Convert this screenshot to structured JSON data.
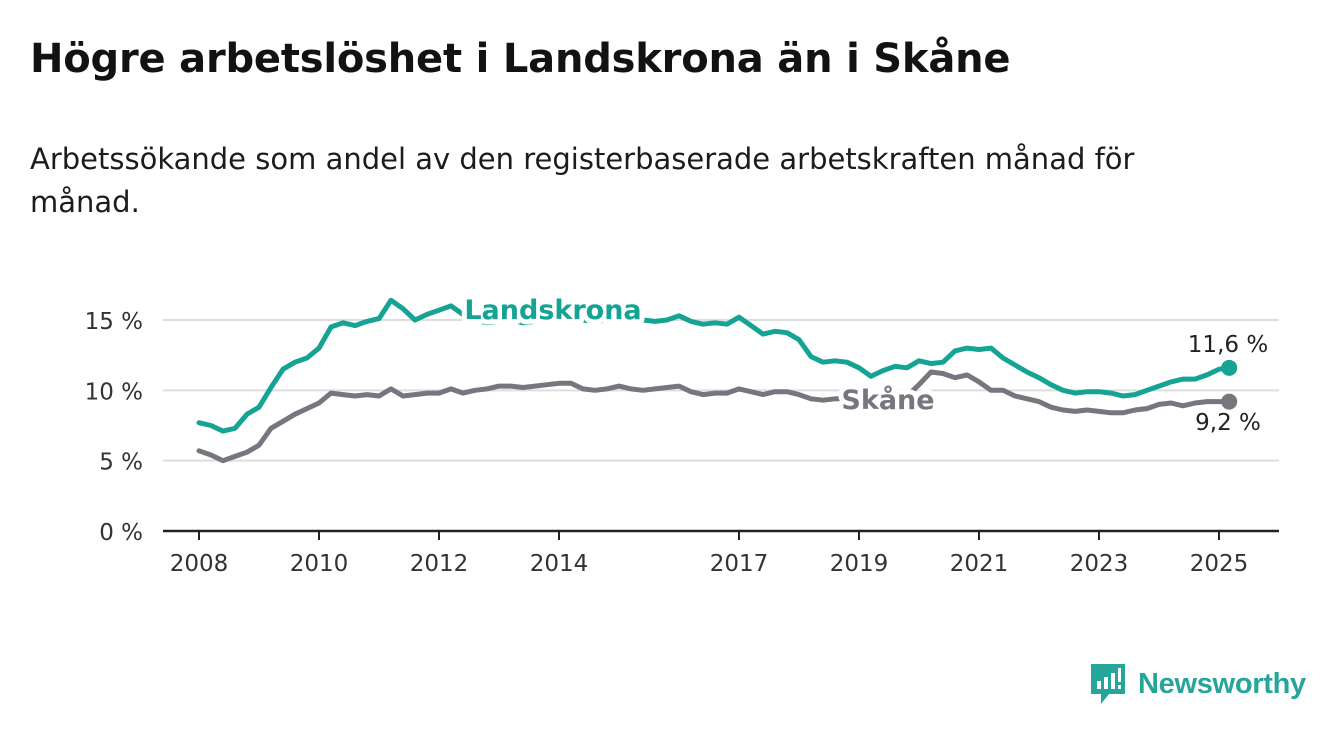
{
  "title": "Högre arbetslöshet i Landskrona än i Skåne",
  "subtitle": "Arbetssökande som andel av den registerbaserade arbetskraften månad för månad.",
  "brand": {
    "name": "Newsworthy",
    "color": "#26a69a"
  },
  "chart_data": {
    "type": "line",
    "ylim": [
      0,
      17
    ],
    "xlim": [
      2007.4,
      2026.0
    ],
    "y_ticks": [
      {
        "value": 0,
        "label": "0 %"
      },
      {
        "value": 5,
        "label": "5 %"
      },
      {
        "value": 10,
        "label": "10 %"
      },
      {
        "value": 15,
        "label": "15 %"
      }
    ],
    "x_ticks": [
      {
        "value": 2008,
        "label": "2008"
      },
      {
        "value": 2010,
        "label": "2010"
      },
      {
        "value": 2012,
        "label": "2012"
      },
      {
        "value": 2014,
        "label": "2014"
      },
      {
        "value": 2017,
        "label": "2017"
      },
      {
        "value": 2019,
        "label": "2019"
      },
      {
        "value": 2021,
        "label": "2021"
      },
      {
        "value": 2023,
        "label": "2023"
      },
      {
        "value": 2025,
        "label": "2025"
      }
    ],
    "grid": true,
    "series": [
      {
        "name": "Landskrona",
        "color": "#14a394",
        "end_label": "11,6 %",
        "x": [
          2008.0,
          2008.2,
          2008.4,
          2008.6,
          2008.8,
          2009.0,
          2009.2,
          2009.4,
          2009.6,
          2009.8,
          2010.0,
          2010.2,
          2010.4,
          2010.6,
          2010.8,
          2011.0,
          2011.2,
          2011.4,
          2011.6,
          2011.8,
          2012.0,
          2012.2,
          2012.4,
          2012.6,
          2012.8,
          2013.0,
          2013.2,
          2013.4,
          2013.6,
          2013.8,
          2014.0,
          2014.2,
          2014.4,
          2014.6,
          2014.8,
          2015.0,
          2015.2,
          2015.4,
          2015.6,
          2015.8,
          2016.0,
          2016.2,
          2016.4,
          2016.6,
          2016.8,
          2017.0,
          2017.2,
          2017.4,
          2017.6,
          2017.8,
          2018.0,
          2018.2,
          2018.4,
          2018.6,
          2018.8,
          2019.0,
          2019.2,
          2019.4,
          2019.6,
          2019.8,
          2020.0,
          2020.2,
          2020.4,
          2020.6,
          2020.8,
          2021.0,
          2021.2,
          2021.4,
          2021.6,
          2021.8,
          2022.0,
          2022.2,
          2022.4,
          2022.6,
          2022.8,
          2023.0,
          2023.2,
          2023.4,
          2023.6,
          2023.8,
          2024.0,
          2024.2,
          2024.4,
          2024.6,
          2024.8,
          2025.0,
          2025.17
        ],
        "values": [
          7.7,
          7.5,
          7.1,
          7.3,
          8.3,
          8.8,
          10.2,
          11.5,
          12.0,
          12.3,
          13.0,
          14.5,
          14.8,
          14.6,
          14.9,
          15.1,
          16.4,
          15.8,
          15.0,
          15.4,
          15.7,
          16.0,
          15.4,
          15.0,
          14.8,
          14.9,
          15.0,
          14.8,
          14.9,
          15.1,
          15.0,
          14.9,
          15.0,
          14.9,
          15.0,
          15.0,
          15.1,
          15.0,
          14.9,
          15.0,
          15.3,
          14.9,
          14.7,
          14.8,
          14.7,
          15.2,
          14.6,
          14.0,
          14.2,
          14.1,
          13.6,
          12.4,
          12.0,
          12.1,
          12.0,
          11.6,
          11.0,
          11.4,
          11.7,
          11.6,
          12.1,
          11.9,
          12.0,
          12.8,
          13.0,
          12.9,
          13.0,
          12.3,
          11.8,
          11.3,
          10.9,
          10.4,
          10.0,
          9.8,
          9.9,
          9.9,
          9.8,
          9.6,
          9.7,
          10.0,
          10.3,
          10.6,
          10.8,
          10.8,
          11.1,
          11.5,
          11.6
        ]
      },
      {
        "name": "Skåne",
        "color": "#76767e",
        "end_label": "9,2 %",
        "x": [
          2008.0,
          2008.2,
          2008.4,
          2008.6,
          2008.8,
          2009.0,
          2009.2,
          2009.4,
          2009.6,
          2009.8,
          2010.0,
          2010.2,
          2010.4,
          2010.6,
          2010.8,
          2011.0,
          2011.2,
          2011.4,
          2011.6,
          2011.8,
          2012.0,
          2012.2,
          2012.4,
          2012.6,
          2012.8,
          2013.0,
          2013.2,
          2013.4,
          2013.6,
          2013.8,
          2014.0,
          2014.2,
          2014.4,
          2014.6,
          2014.8,
          2015.0,
          2015.2,
          2015.4,
          2015.6,
          2015.8,
          2016.0,
          2016.2,
          2016.4,
          2016.6,
          2016.8,
          2017.0,
          2017.2,
          2017.4,
          2017.6,
          2017.8,
          2018.0,
          2018.2,
          2018.4,
          2018.6,
          2018.8,
          2019.0,
          2019.2,
          2019.4,
          2019.6,
          2019.8,
          2020.0,
          2020.2,
          2020.4,
          2020.6,
          2020.8,
          2021.0,
          2021.2,
          2021.4,
          2021.6,
          2021.8,
          2022.0,
          2022.2,
          2022.4,
          2022.6,
          2022.8,
          2023.0,
          2023.2,
          2023.4,
          2023.6,
          2023.8,
          2024.0,
          2024.2,
          2024.4,
          2024.6,
          2024.8,
          2025.0,
          2025.17
        ],
        "values": [
          5.7,
          5.4,
          5.0,
          5.3,
          5.6,
          6.1,
          7.3,
          7.8,
          8.3,
          8.7,
          9.1,
          9.8,
          9.7,
          9.6,
          9.7,
          9.6,
          10.1,
          9.6,
          9.7,
          9.8,
          9.8,
          10.1,
          9.8,
          10.0,
          10.1,
          10.3,
          10.3,
          10.2,
          10.3,
          10.4,
          10.5,
          10.5,
          10.1,
          10.0,
          10.1,
          10.3,
          10.1,
          10.0,
          10.1,
          10.2,
          10.3,
          9.9,
          9.7,
          9.8,
          9.8,
          10.1,
          9.9,
          9.7,
          9.9,
          9.9,
          9.7,
          9.4,
          9.3,
          9.4,
          9.4,
          9.3,
          9.3,
          9.3,
          9.4,
          9.6,
          10.4,
          11.3,
          11.2,
          10.9,
          11.1,
          10.6,
          10.0,
          10.0,
          9.6,
          9.4,
          9.2,
          8.8,
          8.6,
          8.5,
          8.6,
          8.5,
          8.4,
          8.4,
          8.6,
          8.7,
          9.0,
          9.1,
          8.9,
          9.1,
          9.2,
          9.2,
          9.2
        ]
      }
    ]
  }
}
